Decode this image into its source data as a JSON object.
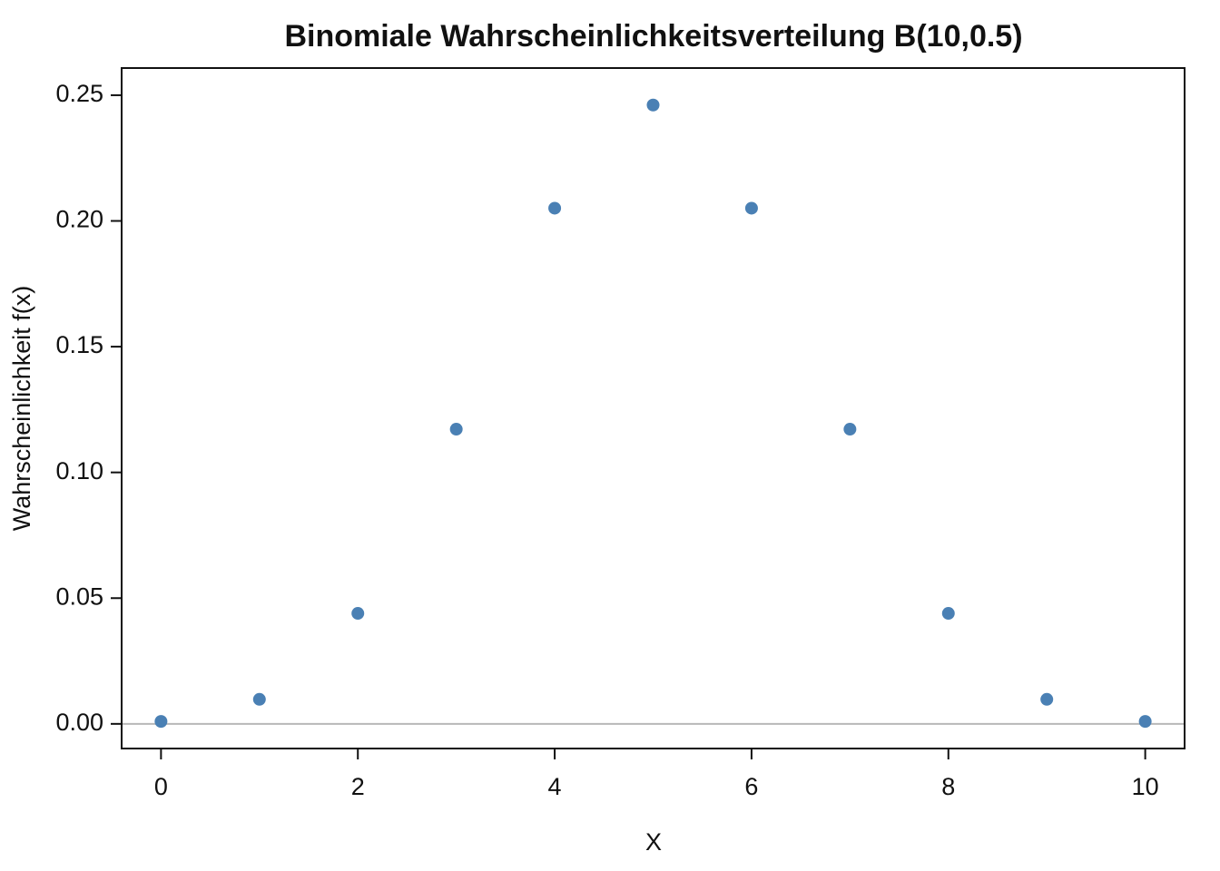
{
  "chart_data": {
    "type": "scatter",
    "title": "Binomiale Wahrscheinlichkeitsverteilung B(10,0.5)",
    "xlabel": "X",
    "ylabel": "Wahrscheinlichkeit f(x)",
    "x": [
      0,
      1,
      2,
      3,
      4,
      5,
      6,
      7,
      8,
      9,
      10
    ],
    "values": [
      0.000977,
      0.009766,
      0.043945,
      0.117188,
      0.205078,
      0.246094,
      0.205078,
      0.117188,
      0.043945,
      0.009766,
      0.000977
    ],
    "color": "#4a80b4",
    "xlim": [
      -0.4,
      10.4
    ],
    "xticks": [
      0,
      2,
      4,
      6,
      8,
      10
    ],
    "ylim": [
      -0.0098,
      0.2608
    ],
    "yticks": [
      {
        "value": 0,
        "label": "0.00"
      },
      {
        "value": 0.05,
        "label": "0.05"
      },
      {
        "value": 0.1,
        "label": "0.10"
      },
      {
        "value": 0.15,
        "label": "0.15"
      },
      {
        "value": 0.2,
        "label": "0.20"
      },
      {
        "value": 0.25,
        "label": "0.25"
      }
    ],
    "reference_line": 0,
    "reference_color": "#b8b8b8"
  }
}
